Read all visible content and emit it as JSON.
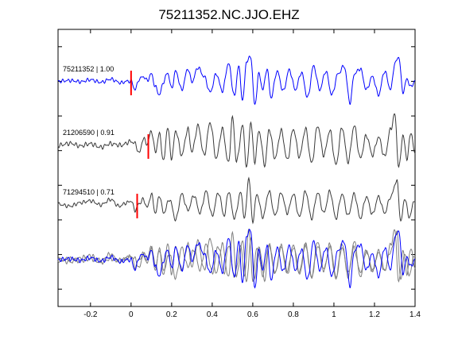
{
  "chart_data": {
    "type": "line",
    "title": "75211352.NC.JJO.EHZ",
    "xlabel": "",
    "ylabel": "",
    "xlim": [
      -0.36,
      1.4
    ],
    "xticks": [
      -0.2,
      0,
      0.2,
      0.4,
      0.6,
      0.8,
      1,
      1.2,
      1.4
    ],
    "xtick_labels": [
      "-0.2",
      "0",
      "0.2",
      "0.4",
      "0.6",
      "0.8",
      "1",
      "1.2",
      "1.4"
    ],
    "yticks_count": 8,
    "grid": false,
    "colors": {
      "primary": "#0000ff",
      "secondary": "#3a3a3a",
      "overlay_gray": "#808080",
      "pick": "#ff0000",
      "axes": "#000000"
    },
    "traces": [
      {
        "label": "75211352 | 1.00",
        "color": "primary",
        "pick_time": 0.0,
        "knots": [
          [
            -0.36,
            0.02
          ],
          [
            -0.3,
            0.05
          ],
          [
            -0.25,
            0.0
          ],
          [
            -0.2,
            0.08
          ],
          [
            -0.15,
            -0.02
          ],
          [
            -0.1,
            0.1
          ],
          [
            -0.05,
            -0.04
          ],
          [
            -0.02,
            0.02
          ],
          [
            0.0,
            0.02
          ],
          [
            0.02,
            -0.3
          ],
          [
            0.04,
            0.1
          ],
          [
            0.06,
            0.2
          ],
          [
            0.08,
            0.05
          ],
          [
            0.1,
            0.3
          ],
          [
            0.12,
            -0.2
          ],
          [
            0.14,
            -0.5
          ],
          [
            0.16,
            0.0
          ],
          [
            0.18,
            0.35
          ],
          [
            0.2,
            -0.25
          ],
          [
            0.22,
            0.4
          ],
          [
            0.25,
            -0.3
          ],
          [
            0.28,
            0.5
          ],
          [
            0.3,
            0.0
          ],
          [
            0.33,
            0.55
          ],
          [
            0.36,
            0.2
          ],
          [
            0.39,
            -0.4
          ],
          [
            0.42,
            0.3
          ],
          [
            0.45,
            -0.35
          ],
          [
            0.48,
            0.7
          ],
          [
            0.51,
            -0.55
          ],
          [
            0.53,
            0.6
          ],
          [
            0.55,
            -0.7
          ],
          [
            0.57,
            0.8
          ],
          [
            0.59,
            0.95
          ],
          [
            0.61,
            -0.9
          ],
          [
            0.63,
            0.3
          ],
          [
            0.65,
            -0.3
          ],
          [
            0.67,
            0.5
          ],
          [
            0.69,
            -0.6
          ],
          [
            0.72,
            0.4
          ],
          [
            0.75,
            -0.35
          ],
          [
            0.78,
            0.45
          ],
          [
            0.81,
            -0.3
          ],
          [
            0.84,
            0.35
          ],
          [
            0.87,
            -0.6
          ],
          [
            0.9,
            0.6
          ],
          [
            0.93,
            -0.3
          ],
          [
            0.96,
            0.4
          ],
          [
            0.99,
            -0.5
          ],
          [
            1.02,
            0.3
          ],
          [
            1.05,
            0.6
          ],
          [
            1.08,
            -0.8
          ],
          [
            1.1,
            0.3
          ],
          [
            1.13,
            0.5
          ],
          [
            1.16,
            -0.3
          ],
          [
            1.19,
            0.2
          ],
          [
            1.22,
            -0.5
          ],
          [
            1.25,
            0.4
          ],
          [
            1.28,
            -0.3
          ],
          [
            1.3,
            0.7
          ],
          [
            1.32,
            0.95
          ],
          [
            1.34,
            -0.4
          ],
          [
            1.36,
            0.1
          ],
          [
            1.38,
            -0.2
          ],
          [
            1.4,
            0.05
          ]
        ]
      },
      {
        "label": "21206590 | 0.91",
        "color": "secondary",
        "pick_time": 0.085,
        "knots": [
          [
            -0.36,
            0.0
          ],
          [
            -0.3,
            0.06
          ],
          [
            -0.25,
            -0.02
          ],
          [
            -0.2,
            0.05
          ],
          [
            -0.15,
            -0.06
          ],
          [
            -0.1,
            0.05
          ],
          [
            -0.05,
            0.0
          ],
          [
            0.0,
            0.12
          ],
          [
            0.02,
            0.05
          ],
          [
            0.04,
            -0.25
          ],
          [
            0.06,
            0.2
          ],
          [
            0.08,
            0.05
          ],
          [
            0.1,
            0.45
          ],
          [
            0.12,
            -0.2
          ],
          [
            0.14,
            0.35
          ],
          [
            0.16,
            -0.5
          ],
          [
            0.18,
            0.55
          ],
          [
            0.2,
            -0.4
          ],
          [
            0.22,
            0.45
          ],
          [
            0.25,
            -0.3
          ],
          [
            0.28,
            0.5
          ],
          [
            0.3,
            -0.2
          ],
          [
            0.33,
            0.6
          ],
          [
            0.36,
            -0.3
          ],
          [
            0.39,
            0.7
          ],
          [
            0.42,
            -0.4
          ],
          [
            0.45,
            0.5
          ],
          [
            0.48,
            -0.55
          ],
          [
            0.5,
            0.85
          ],
          [
            0.52,
            -0.5
          ],
          [
            0.55,
            0.6
          ],
          [
            0.57,
            -0.7
          ],
          [
            0.59,
            0.7
          ],
          [
            0.61,
            -0.5
          ],
          [
            0.63,
            0.45
          ],
          [
            0.66,
            -0.6
          ],
          [
            0.68,
            0.5
          ],
          [
            0.71,
            -0.4
          ],
          [
            0.74,
            0.45
          ],
          [
            0.77,
            -0.45
          ],
          [
            0.8,
            0.5
          ],
          [
            0.83,
            -0.35
          ],
          [
            0.86,
            0.5
          ],
          [
            0.89,
            -0.55
          ],
          [
            0.92,
            0.6
          ],
          [
            0.95,
            -0.3
          ],
          [
            0.98,
            0.45
          ],
          [
            1.01,
            -0.6
          ],
          [
            1.04,
            0.55
          ],
          [
            1.07,
            -0.5
          ],
          [
            1.1,
            0.6
          ],
          [
            1.13,
            -0.4
          ],
          [
            1.16,
            0.3
          ],
          [
            1.19,
            -0.3
          ],
          [
            1.22,
            0.25
          ],
          [
            1.25,
            -0.35
          ],
          [
            1.28,
            0.5
          ],
          [
            1.3,
            0.95
          ],
          [
            1.32,
            -0.7
          ],
          [
            1.34,
            0.3
          ],
          [
            1.36,
            -0.4
          ],
          [
            1.38,
            0.4
          ],
          [
            1.4,
            -0.3
          ]
        ]
      },
      {
        "label": "71294510 | 0.71",
        "color": "secondary",
        "pick_time": 0.03,
        "knots": [
          [
            -0.36,
            0.02
          ],
          [
            -0.3,
            -0.05
          ],
          [
            -0.25,
            0.08
          ],
          [
            -0.2,
            0.15
          ],
          [
            -0.15,
            0.0
          ],
          [
            -0.1,
            0.2
          ],
          [
            -0.06,
            -0.05
          ],
          [
            -0.02,
            0.08
          ],
          [
            0.0,
            0.15
          ],
          [
            0.02,
            -0.2
          ],
          [
            0.04,
            0.05
          ],
          [
            0.06,
            0.2
          ],
          [
            0.08,
            -0.1
          ],
          [
            0.1,
            0.4
          ],
          [
            0.12,
            -0.3
          ],
          [
            0.14,
            0.35
          ],
          [
            0.16,
            -0.3
          ],
          [
            0.19,
            0.2
          ],
          [
            0.22,
            -0.55
          ],
          [
            0.25,
            0.4
          ],
          [
            0.28,
            -0.2
          ],
          [
            0.31,
            0.35
          ],
          [
            0.34,
            -0.3
          ],
          [
            0.37,
            0.5
          ],
          [
            0.4,
            -0.4
          ],
          [
            0.43,
            0.45
          ],
          [
            0.46,
            -0.4
          ],
          [
            0.48,
            0.5
          ],
          [
            0.51,
            -0.5
          ],
          [
            0.54,
            0.45
          ],
          [
            0.56,
            -0.5
          ],
          [
            0.58,
            1.0
          ],
          [
            0.6,
            -0.6
          ],
          [
            0.62,
            0.4
          ],
          [
            0.65,
            -0.45
          ],
          [
            0.68,
            0.5
          ],
          [
            0.71,
            -0.4
          ],
          [
            0.74,
            0.45
          ],
          [
            0.77,
            -0.3
          ],
          [
            0.8,
            0.4
          ],
          [
            0.83,
            -0.45
          ],
          [
            0.86,
            0.5
          ],
          [
            0.89,
            -0.5
          ],
          [
            0.92,
            0.45
          ],
          [
            0.95,
            -0.3
          ],
          [
            0.98,
            0.5
          ],
          [
            1.01,
            -0.5
          ],
          [
            1.04,
            0.4
          ],
          [
            1.07,
            -0.4
          ],
          [
            1.1,
            0.4
          ],
          [
            1.13,
            -0.5
          ],
          [
            1.16,
            0.3
          ],
          [
            1.19,
            -0.35
          ],
          [
            1.22,
            0.3
          ],
          [
            1.25,
            -0.3
          ],
          [
            1.28,
            0.3
          ],
          [
            1.31,
            0.9
          ],
          [
            1.33,
            -0.6
          ],
          [
            1.35,
            0.25
          ],
          [
            1.37,
            -0.45
          ],
          [
            1.4,
            0.2
          ]
        ]
      }
    ]
  }
}
